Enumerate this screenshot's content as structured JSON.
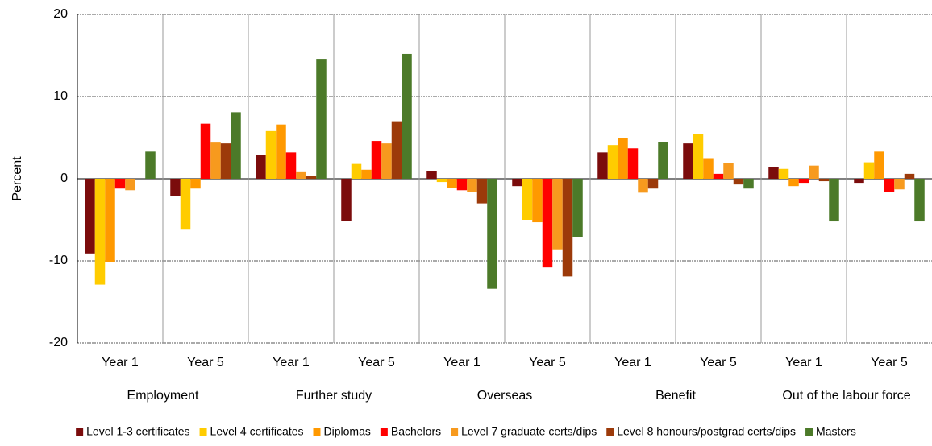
{
  "chart_data": {
    "type": "bar",
    "y_label": "Percent",
    "categories": [
      "Year 1",
      "Year 5",
      "Year 1",
      "Year 5",
      "Year 1",
      "Year 5",
      "Year 1",
      "Year 5",
      "Year 1",
      "Year 5"
    ],
    "groups": [
      "Employment",
      "Further study",
      "Overseas",
      "Benefit",
      "Out of the labour force"
    ],
    "series": [
      {
        "name": "Level 1-3 certificates",
        "color": "#7b0c0c",
        "values": [
          -9.1,
          -2.1,
          2.9,
          -5.1,
          0.9,
          -0.9,
          3.2,
          4.3,
          1.4,
          -0.5
        ]
      },
      {
        "name": "Level 4 certificates",
        "color": "#ffcc00",
        "values": [
          -12.9,
          -6.2,
          5.8,
          1.8,
          -0.4,
          -5.0,
          4.1,
          5.4,
          1.2,
          2.0
        ]
      },
      {
        "name": "Diplomas",
        "color": "#ff9900",
        "values": [
          -10.1,
          -1.2,
          6.6,
          1.1,
          -1.1,
          -5.3,
          5.0,
          2.5,
          -0.9,
          3.3
        ]
      },
      {
        "name": "Bachelors",
        "color": "#ff0000",
        "values": [
          -1.2,
          6.7,
          3.2,
          4.6,
          -1.4,
          -10.8,
          3.7,
          0.6,
          -0.5,
          -1.6
        ]
      },
      {
        "name": "Level 7 graduate certs/dips",
        "color": "#f79a1e",
        "values": [
          -1.4,
          4.4,
          0.8,
          4.3,
          -1.6,
          -8.6,
          -1.7,
          1.9,
          1.6,
          -1.3
        ]
      },
      {
        "name": "Level 8 honours/postgrad certs/dips",
        "color": "#9c3a0a",
        "values": [
          0,
          4.3,
          0.3,
          7.0,
          -3.0,
          -11.9,
          -1.2,
          -0.7,
          -0.3,
          0.6
        ]
      },
      {
        "name": "Masters",
        "color": "#4c7a29",
        "values": [
          3.3,
          8.1,
          14.6,
          15.2,
          -13.4,
          -7.1,
          4.5,
          -1.2,
          -5.2,
          -5.2
        ]
      }
    ],
    "ylim": [
      -20,
      20
    ],
    "yticks": [
      -20,
      -10,
      0,
      10,
      20
    ],
    "grid": true
  }
}
